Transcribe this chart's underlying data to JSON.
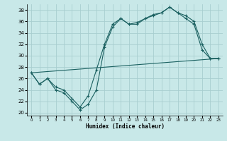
{
  "xlabel": "Humidex (Indice chaleur)",
  "background_color": "#c8e8e8",
  "grid_color": "#a8ced0",
  "line_color": "#1a6060",
  "xlim": [
    -0.5,
    23.5
  ],
  "ylim": [
    19.5,
    39.0
  ],
  "xticks": [
    0,
    1,
    2,
    3,
    4,
    5,
    6,
    7,
    8,
    9,
    10,
    11,
    12,
    13,
    14,
    15,
    16,
    17,
    18,
    19,
    20,
    21,
    22,
    23
  ],
  "yticks": [
    20,
    22,
    24,
    26,
    28,
    30,
    32,
    34,
    36,
    38
  ],
  "line1_x": [
    0,
    1,
    2,
    3,
    4,
    5,
    6,
    7,
    8,
    9,
    10,
    11,
    12,
    13,
    14,
    15,
    16,
    17,
    18,
    19,
    20,
    21,
    22,
    23
  ],
  "line1_y": [
    27.0,
    25.0,
    26.0,
    24.0,
    23.5,
    22.0,
    20.5,
    21.5,
    24.0,
    31.5,
    35.0,
    36.5,
    35.5,
    35.5,
    36.5,
    37.0,
    37.5,
    38.5,
    37.5,
    37.0,
    36.0,
    32.0,
    29.5,
    29.5
  ],
  "line2_x": [
    0,
    1,
    2,
    3,
    4,
    5,
    6,
    7,
    8,
    9,
    10,
    11,
    12,
    13,
    14,
    15,
    16,
    17,
    18,
    19,
    20,
    21,
    22,
    23
  ],
  "line2_y": [
    27.0,
    25.0,
    26.0,
    24.5,
    24.0,
    22.5,
    21.0,
    23.0,
    27.5,
    32.0,
    35.5,
    36.5,
    35.5,
    35.8,
    36.5,
    37.2,
    37.5,
    38.5,
    37.5,
    36.5,
    35.5,
    31.0,
    29.5,
    29.5
  ],
  "line3_x": [
    0,
    23
  ],
  "line3_y": [
    27.0,
    29.5
  ]
}
